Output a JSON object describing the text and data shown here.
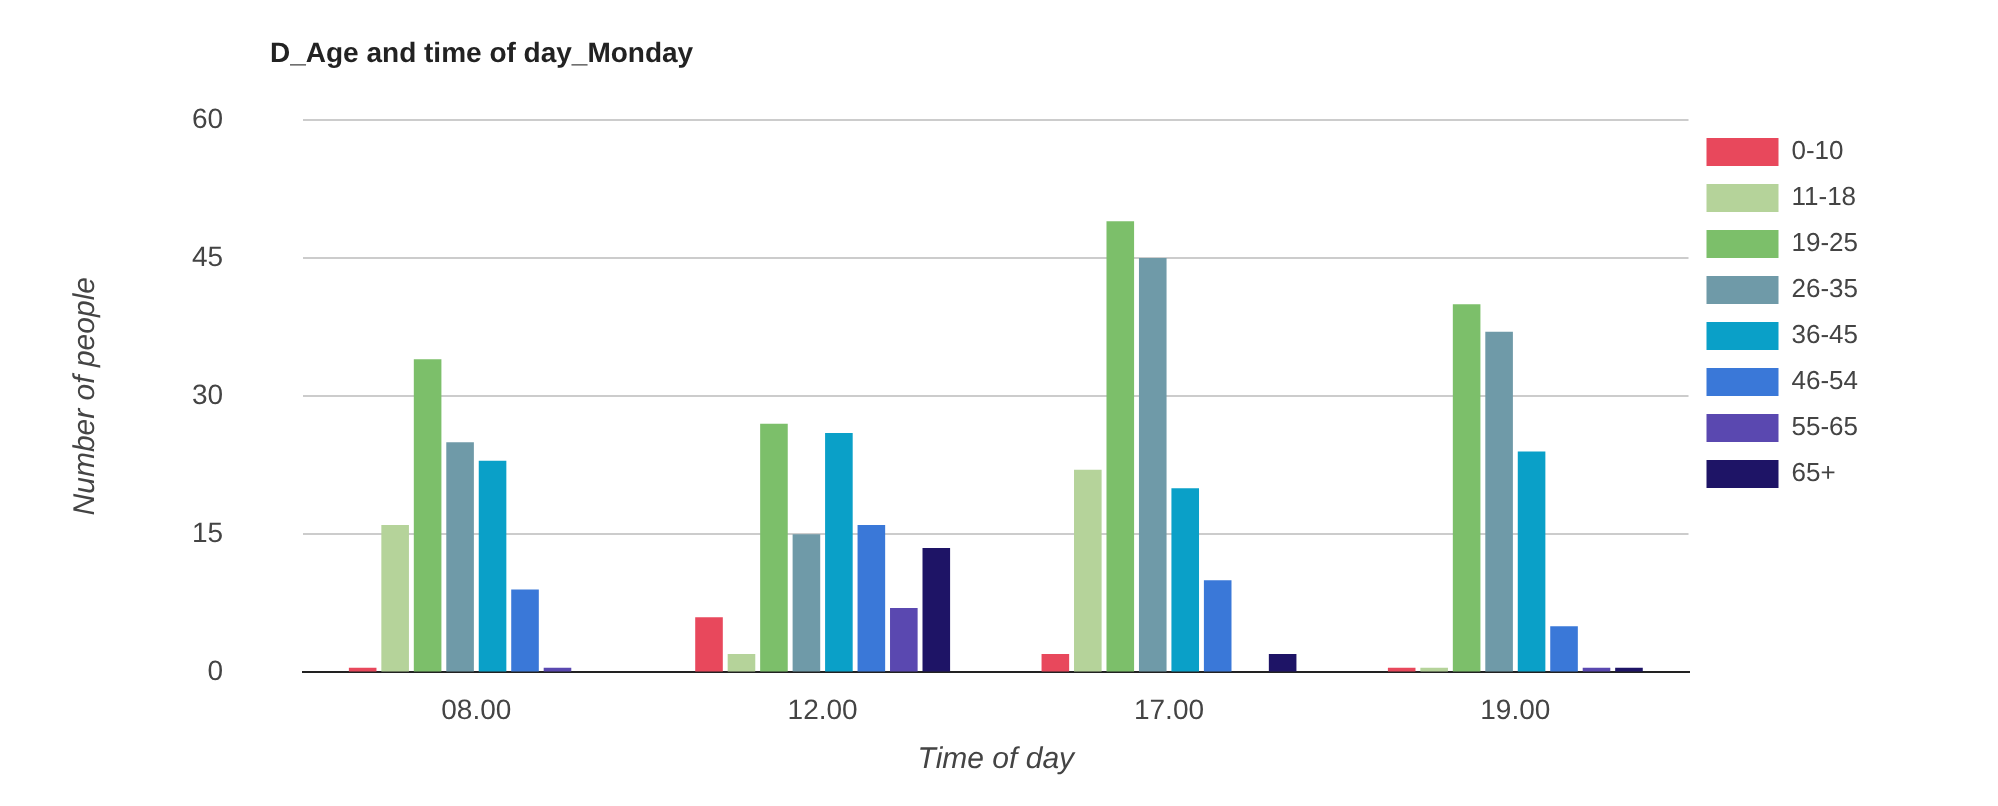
{
  "chart_data": {
    "type": "bar",
    "title": "D_Age and time of day_Monday",
    "xlabel": "Time of day",
    "ylabel": "Number of people",
    "categories": [
      "08.00",
      "12.00",
      "17.00",
      "19.00"
    ],
    "series": [
      {
        "name": "0-10",
        "color": "#e8485c",
        "values": [
          0.5,
          6,
          2,
          0.5
        ]
      },
      {
        "name": "11-18",
        "color": "#b5d39a",
        "values": [
          16,
          2,
          22,
          0.5
        ]
      },
      {
        "name": "19-25",
        "color": "#7cbf6a",
        "values": [
          34,
          27,
          49,
          40
        ]
      },
      {
        "name": "26-35",
        "color": "#6f9aa8",
        "values": [
          25,
          15,
          45,
          37
        ]
      },
      {
        "name": "36-45",
        "color": "#0aa0c8",
        "values": [
          23,
          26,
          20,
          24
        ]
      },
      {
        "name": "46-54",
        "color": "#3a78d8",
        "values": [
          9,
          16,
          10,
          5
        ]
      },
      {
        "name": "55-65",
        "color": "#5a48b0",
        "values": [
          0.5,
          7,
          0,
          0.5
        ]
      },
      {
        "name": "65+",
        "color": "#1e1466",
        "values": [
          0,
          13.5,
          2,
          0.5
        ]
      }
    ],
    "ylim": [
      0,
      60
    ],
    "yticks": [
      0,
      15,
      30,
      45,
      60
    ],
    "grid": "y",
    "legend": "right"
  }
}
